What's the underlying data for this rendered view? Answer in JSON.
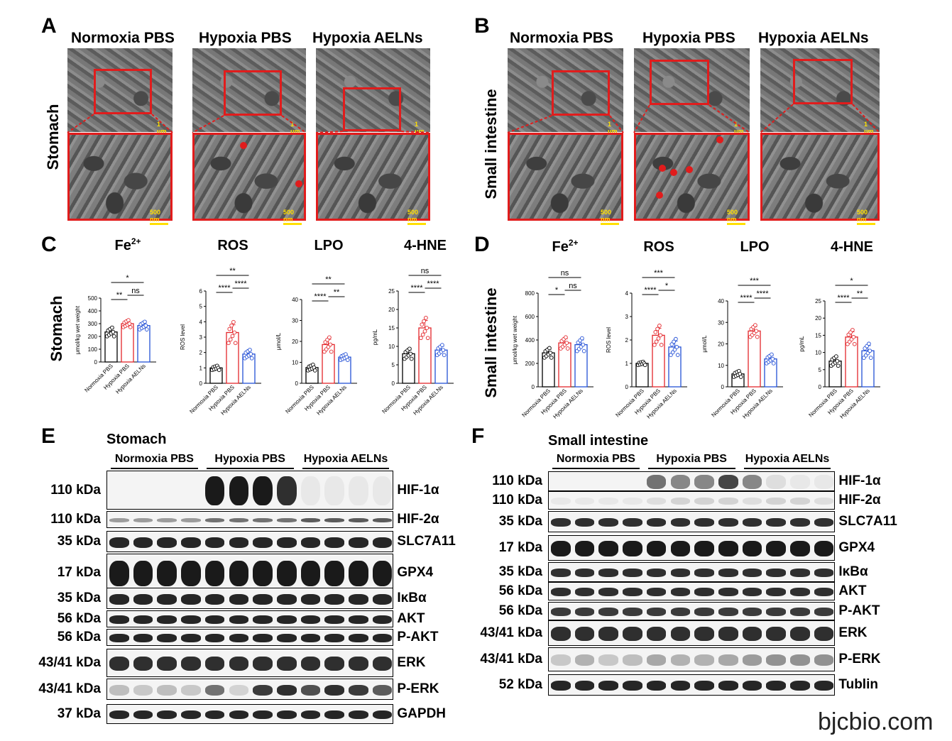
{
  "panels": {
    "A": "A",
    "B": "B",
    "C": "C",
    "D": "D",
    "E": "E",
    "F": "F"
  },
  "em": {
    "groups": [
      "Normoxia PBS",
      "Hypoxia PBS",
      "Hypoxia AELNs"
    ],
    "stomach_label": "Stomach",
    "intestine_label": "Small intestine",
    "scale_top": "1 μm",
    "scale_bottom": "500 nm"
  },
  "charts": {
    "C_row_label": "Stomach",
    "D_row_label": "Small intestine",
    "titles": [
      "Fe2+",
      "ROS",
      "LPO",
      "4-HNE"
    ]
  },
  "chart_data": [
    {
      "type": "bar",
      "id": "C-Fe",
      "title": "Fe2+",
      "ylabel": "μmol/kg wet weight",
      "ylim": [
        0,
        500
      ],
      "yticks": [
        0,
        100,
        200,
        300,
        400,
        500
      ],
      "categories": [
        "Normoxia PBS",
        "Hypoxia PBS",
        "Hypoxia AELNs"
      ],
      "values": [
        235,
        300,
        285
      ],
      "errors": [
        25,
        20,
        22
      ],
      "colors": [
        "#000000",
        "#e3262b",
        "#2450d6"
      ],
      "sig": [
        {
          "a": 0,
          "b": 1,
          "label": "**"
        },
        {
          "a": 1,
          "b": 2,
          "label": "ns"
        },
        {
          "a": 0,
          "b": 2,
          "label": "*"
        }
      ]
    },
    {
      "type": "bar",
      "id": "C-ROS",
      "title": "ROS",
      "ylabel": "ROS level",
      "ylim": [
        0,
        6
      ],
      "yticks": [
        0,
        1,
        2,
        3,
        4,
        5,
        6
      ],
      "categories": [
        "Normoxia PBS",
        "Hypoxia PBS",
        "Hypoxia AELNs"
      ],
      "values": [
        1.0,
        3.3,
        1.9
      ],
      "errors": [
        0.1,
        0.5,
        0.2
      ],
      "colors": [
        "#000000",
        "#e3262b",
        "#2450d6"
      ],
      "sig": [
        {
          "a": 0,
          "b": 1,
          "label": "****"
        },
        {
          "a": 1,
          "b": 2,
          "label": "****"
        },
        {
          "a": 0,
          "b": 2,
          "label": "**"
        }
      ]
    },
    {
      "type": "bar",
      "id": "C-LPO",
      "title": "LPO",
      "ylabel": "μmol/L",
      "ylim": [
        0,
        40
      ],
      "yticks": [
        0,
        10,
        20,
        30,
        40
      ],
      "categories": [
        "Normoxia PBS",
        "Hypoxia PBS",
        "Hypoxia AELNs"
      ],
      "values": [
        7.5,
        18.5,
        12.5
      ],
      "errors": [
        1,
        2.5,
        1
      ],
      "colors": [
        "#000000",
        "#e3262b",
        "#2450d6"
      ],
      "sig": [
        {
          "a": 0,
          "b": 1,
          "label": "****"
        },
        {
          "a": 1,
          "b": 2,
          "label": "**"
        },
        {
          "a": 0,
          "b": 2,
          "label": "**"
        }
      ]
    },
    {
      "type": "bar",
      "id": "C-HNE",
      "title": "4-HNE",
      "ylabel": "pg/mL",
      "ylim": [
        0,
        25
      ],
      "yticks": [
        0,
        5,
        10,
        15,
        20,
        25
      ],
      "categories": [
        "Normoxia PBS",
        "Hypoxia PBS",
        "Hypoxia AELNs"
      ],
      "values": [
        8,
        15,
        9
      ],
      "errors": [
        1,
        2,
        1
      ],
      "colors": [
        "#000000",
        "#e3262b",
        "#2450d6"
      ],
      "sig": [
        {
          "a": 0,
          "b": 1,
          "label": "****"
        },
        {
          "a": 1,
          "b": 2,
          "label": "****"
        },
        {
          "a": 0,
          "b": 2,
          "label": "ns"
        }
      ]
    },
    {
      "type": "bar",
      "id": "D-Fe",
      "title": "Fe2+",
      "ylabel": "μmol/kg wet weight",
      "ylim": [
        0,
        800
      ],
      "yticks": [
        0,
        200,
        400,
        600,
        800
      ],
      "categories": [
        "Normoxia PBS",
        "Hypoxia PBS",
        "Hypoxia AELNs"
      ],
      "values": [
        290,
        375,
        360
      ],
      "errors": [
        30,
        35,
        40
      ],
      "colors": [
        "#000000",
        "#e3262b",
        "#2450d6"
      ],
      "sig": [
        {
          "a": 0,
          "b": 1,
          "label": "*"
        },
        {
          "a": 1,
          "b": 2,
          "label": "ns"
        },
        {
          "a": 0,
          "b": 2,
          "label": "ns"
        }
      ]
    },
    {
      "type": "bar",
      "id": "D-ROS",
      "title": "ROS",
      "ylabel": "ROS level",
      "ylim": [
        0,
        4
      ],
      "yticks": [
        0,
        1,
        2,
        3,
        4
      ],
      "categories": [
        "Normoxia PBS",
        "Hypoxia PBS",
        "Hypoxia AELNs"
      ],
      "values": [
        1.0,
        2.2,
        1.7
      ],
      "errors": [
        0.05,
        0.3,
        0.25
      ],
      "colors": [
        "#000000",
        "#e3262b",
        "#2450d6"
      ],
      "sig": [
        {
          "a": 0,
          "b": 1,
          "label": "****"
        },
        {
          "a": 1,
          "b": 2,
          "label": "*"
        },
        {
          "a": 0,
          "b": 2,
          "label": "***"
        }
      ]
    },
    {
      "type": "bar",
      "id": "D-LPO",
      "title": "LPO",
      "ylabel": "μmol/L",
      "ylim": [
        0,
        40
      ],
      "yticks": [
        0,
        10,
        20,
        30,
        40
      ],
      "categories": [
        "Normoxia PBS",
        "Hypoxia PBS",
        "Hypoxia AELNs"
      ],
      "values": [
        6,
        26,
        13
      ],
      "errors": [
        1,
        2,
        1.5
      ],
      "colors": [
        "#000000",
        "#e3262b",
        "#2450d6"
      ],
      "sig": [
        {
          "a": 0,
          "b": 1,
          "label": "****"
        },
        {
          "a": 1,
          "b": 2,
          "label": "****"
        },
        {
          "a": 0,
          "b": 2,
          "label": "***"
        }
      ]
    },
    {
      "type": "bar",
      "id": "D-HNE",
      "title": "4-HNE",
      "ylabel": "pg/mL",
      "ylim": [
        0,
        25
      ],
      "yticks": [
        0,
        5,
        10,
        15,
        20,
        25
      ],
      "categories": [
        "Normoxia PBS",
        "Hypoxia PBS",
        "Hypoxia AELNs"
      ],
      "values": [
        7.5,
        14.5,
        10.5
      ],
      "errors": [
        1,
        1.5,
        1.5
      ],
      "colors": [
        "#000000",
        "#e3262b",
        "#2450d6"
      ],
      "sig": [
        {
          "a": 0,
          "b": 1,
          "label": "****"
        },
        {
          "a": 1,
          "b": 2,
          "label": "**"
        },
        {
          "a": 0,
          "b": 2,
          "label": "*"
        }
      ]
    }
  ],
  "western": {
    "E": {
      "title": "Stomach",
      "groups": [
        "Normoxia PBS",
        "Hypoxia PBS",
        "Hypoxia AELNs"
      ],
      "rows": [
        {
          "kda": "110 kDa",
          "name": "HIF-1α"
        },
        {
          "kda": "110 kDa",
          "name": "HIF-2α"
        },
        {
          "kda": "35 kDa",
          "name": "SLC7A11"
        },
        {
          "kda": "17 kDa",
          "name": "GPX4"
        },
        {
          "kda": "35 kDa",
          "name": "IκBα"
        },
        {
          "kda": "56 kDa",
          "name": "AKT"
        },
        {
          "kda": "56 kDa",
          "name": "P-AKT"
        },
        {
          "kda": "43/41 kDa",
          "name": "ERK"
        },
        {
          "kda": "43/41 kDa",
          "name": "P-ERK"
        },
        {
          "kda": "37 kDa",
          "name": "GAPDH"
        }
      ]
    },
    "F": {
      "title": "Small intestine",
      "groups": [
        "Normoxia PBS",
        "Hypoxia PBS",
        "Hypoxia AELNs"
      ],
      "rows": [
        {
          "kda": "110 kDa",
          "name": "HIF-1α"
        },
        {
          "kda": "110 kDa",
          "name": "HIF-2α"
        },
        {
          "kda": "35 kDa",
          "name": "SLC7A11"
        },
        {
          "kda": "17 kDa",
          "name": "GPX4"
        },
        {
          "kda": "35 kDa",
          "name": "IκBα"
        },
        {
          "kda": "56 kDa",
          "name": "AKT"
        },
        {
          "kda": "56 kDa",
          "name": "P-AKT"
        },
        {
          "kda": "43/41 kDa",
          "name": "ERK"
        },
        {
          "kda": "43/41 kDa",
          "name": "P-ERK"
        },
        {
          "kda": "52 kDa",
          "name": "Tublin"
        }
      ]
    }
  },
  "watermark": "bjcbio.com"
}
